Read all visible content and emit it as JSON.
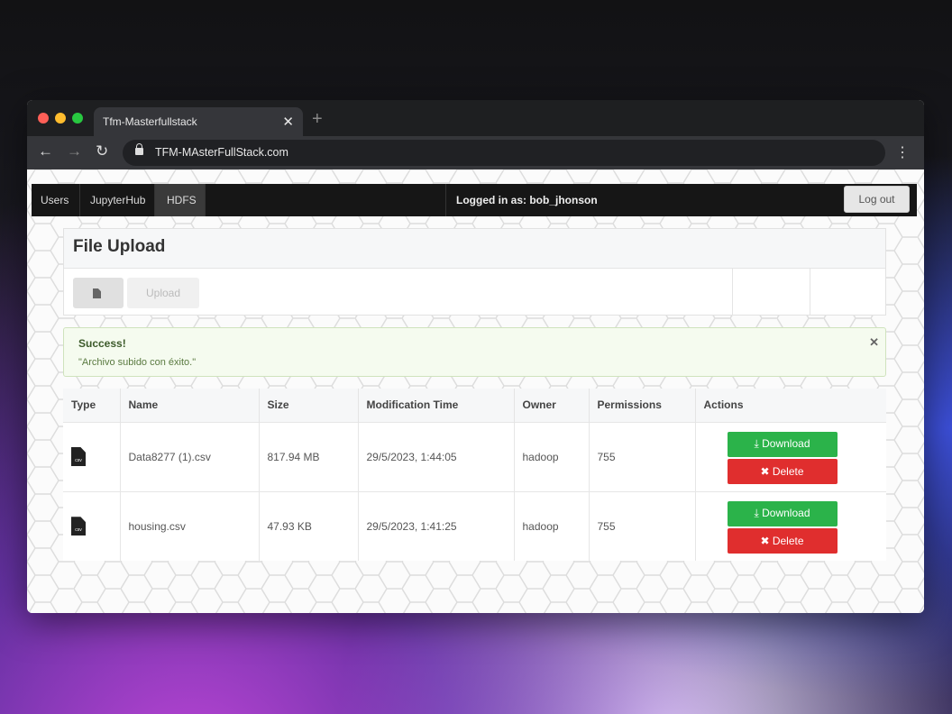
{
  "browser": {
    "tab_title": "Tfm-Masterfullstack",
    "url": "TFM-MAsterFullStack.com"
  },
  "nav": {
    "items": [
      {
        "label": "Users"
      },
      {
        "label": "JupyterHub"
      },
      {
        "label": "HDFS",
        "active": true
      }
    ],
    "logged_in": "Logged in as: bob_jhonson",
    "logout": "Log out"
  },
  "upload": {
    "title": "File Upload",
    "upload_label": "Upload"
  },
  "alert": {
    "title": "Success!",
    "message": "\"Archivo subido con éxito.\""
  },
  "table": {
    "headers": [
      "Type",
      "Name",
      "Size",
      "Modification Time",
      "Owner",
      "Permissions",
      "Actions"
    ],
    "rows": [
      {
        "type": "csv",
        "name": "Data8277 (1).csv",
        "size": "817.94 MB",
        "mtime": "29/5/2023, 1:44:05",
        "owner": "hadoop",
        "perm": "755"
      },
      {
        "type": "csv",
        "name": "housing.csv",
        "size": "47.93 KB",
        "mtime": "29/5/2023, 1:41:25",
        "owner": "hadoop",
        "perm": "755"
      }
    ],
    "download": "Download",
    "delete": "Delete"
  },
  "colors": {
    "download": "#2bb34a",
    "delete": "#e02e2e"
  }
}
